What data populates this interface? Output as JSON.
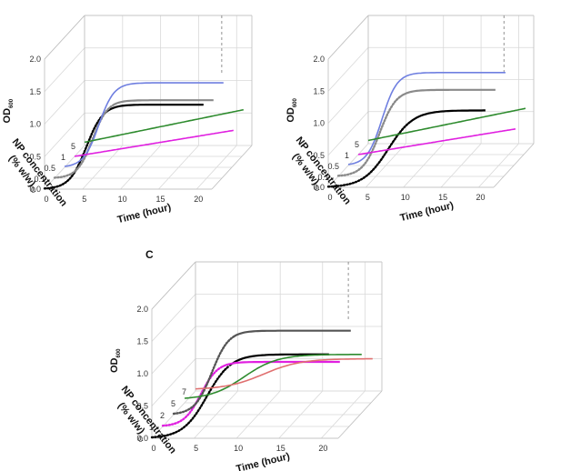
{
  "chart_data": [
    {
      "type": "line",
      "panel_label": "",
      "ylabel": "OD",
      "ylabel_sub": "600",
      "zlabel": "NP concentration",
      "zlabel_unit": "(% w/w)",
      "xlabel": "Time (hour)",
      "y_ticks": [
        "0.0",
        "0.5",
        "1.0",
        "1.5",
        "2.0"
      ],
      "x_ticks": [
        "0",
        "5",
        "10",
        "15",
        "20"
      ],
      "z_ticks": [
        "0",
        "0.1",
        "0.5",
        "1",
        "5"
      ],
      "ylim": [
        0,
        2
      ],
      "xlim": [
        0,
        22
      ],
      "series": [
        {
          "z": "0",
          "color": "#000000",
          "style": "dotted-then-solid",
          "kind": "sigmoid",
          "y0": 0.0,
          "ymax": 1.3,
          "t_mid": 5.5,
          "k": 0.9
        },
        {
          "z": "0.1",
          "color": "#8a8a8a",
          "style": "dotted-then-solid",
          "kind": "sigmoid",
          "y0": 0.0,
          "ymax": 1.2,
          "t_mid": 5.0,
          "k": 1.0
        },
        {
          "z": "0.5",
          "color": "#6f7fe0",
          "style": "solid",
          "kind": "sigmoid",
          "y0": 0.0,
          "ymax": 1.3,
          "t_mid": 4.5,
          "k": 1.0
        },
        {
          "z": "1",
          "color": "#e020e0",
          "style": "solid",
          "kind": "linear",
          "y0": 0.0,
          "y1": 0.4
        },
        {
          "z": "5",
          "color": "#2e8b2e",
          "style": "solid",
          "kind": "linear",
          "y0": 0.05,
          "y1": 0.55
        }
      ]
    },
    {
      "type": "line",
      "panel_label": "",
      "ylabel": "OD",
      "ylabel_sub": "600",
      "zlabel": "NP concentration",
      "zlabel_unit": "(% w/w)",
      "xlabel": "Time (hour)",
      "y_ticks": [
        "0.0",
        "0.5",
        "1.0",
        "1.5",
        "2.0"
      ],
      "x_ticks": [
        "0",
        "5",
        "10",
        "15",
        "20"
      ],
      "z_ticks": [
        "0",
        "0.1",
        "0.5",
        "1",
        "5"
      ],
      "ylim": [
        0,
        2
      ],
      "xlim": [
        0,
        22
      ],
      "series": [
        {
          "z": "0",
          "color": "#000000",
          "style": "dotted-then-solid",
          "kind": "sigmoid",
          "y0": 0.0,
          "ymax": 1.2,
          "t_mid": 8.0,
          "k": 0.6
        },
        {
          "z": "0.1",
          "color": "#8a8a8a",
          "style": "dotted-then-solid",
          "kind": "sigmoid",
          "y0": 0.0,
          "ymax": 1.35,
          "t_mid": 5.5,
          "k": 0.9
        },
        {
          "z": "0.5",
          "color": "#6f7fe0",
          "style": "solid",
          "kind": "sigmoid",
          "y0": 0.0,
          "ymax": 1.45,
          "t_mid": 4.5,
          "k": 1.0
        },
        {
          "z": "1",
          "color": "#e020e0",
          "style": "solid",
          "kind": "linear",
          "y0": 0.0,
          "y1": 0.4
        },
        {
          "z": "5",
          "color": "#2e8b2e",
          "style": "solid",
          "kind": "linear",
          "y0": 0.05,
          "y1": 0.55
        }
      ]
    },
    {
      "type": "line",
      "panel_label": "C",
      "ylabel": "OD",
      "ylabel_sub": "600",
      "zlabel": "NP concentration",
      "zlabel_unit": "(% w/w)",
      "xlabel": "Time (hour)",
      "y_ticks": [
        "0.0",
        "0.5",
        "1.0",
        "1.5",
        "2.0"
      ],
      "x_ticks": [
        "0",
        "5",
        "10",
        "15",
        "20"
      ],
      "z_ticks": [
        "0",
        "1",
        "2",
        "5",
        "7"
      ],
      "ylim": [
        0,
        2
      ],
      "xlim": [
        0,
        22
      ],
      "series": [
        {
          "z": "0",
          "color": "#000000",
          "style": "dotted-then-solid",
          "kind": "sigmoid",
          "y0": 0.0,
          "ymax": 1.3,
          "t_mid": 6.5,
          "k": 0.7
        },
        {
          "z": "1",
          "color": "#e020e0",
          "style": "dotted-then-solid",
          "kind": "sigmoid",
          "y0": 0.0,
          "ymax": 1.0,
          "t_mid": 4.5,
          "k": 1.0
        },
        {
          "z": "2",
          "color": "#555555",
          "style": "dotted-then-solid",
          "kind": "sigmoid",
          "y0": 0.0,
          "ymax": 1.3,
          "t_mid": 4.5,
          "k": 1.0
        },
        {
          "z": "5",
          "color": "#2e8b2e",
          "style": "solid",
          "kind": "sigmoid",
          "y0": 0.05,
          "ymax": 0.75,
          "t_mid": 7.0,
          "k": 0.5
        },
        {
          "z": "7",
          "color": "#e07070",
          "style": "solid",
          "kind": "sigmoid",
          "y0": 0.02,
          "ymax": 0.5,
          "t_mid": 8.0,
          "k": 0.45
        }
      ]
    }
  ]
}
